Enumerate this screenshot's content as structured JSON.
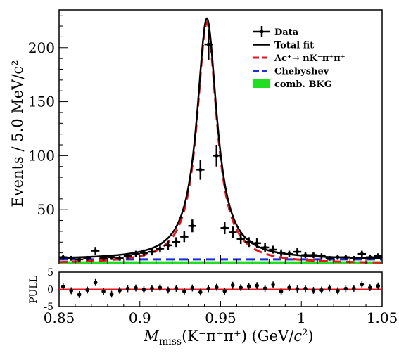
{
  "chart_data": [
    {
      "type": "line",
      "panel": "main",
      "ylabel": "Events / 5.0 MeV/c²",
      "xlabel": "M_miss(K⁻π⁺π⁺) (GeV/c²)",
      "xlim": [
        0.85,
        1.05
      ],
      "ylim": [
        0,
        235
      ],
      "x_ticks": [
        0.85,
        0.9,
        0.95,
        1.0,
        1.05
      ],
      "x_tick_labels": [
        "0.85",
        "0.9",
        "0.95",
        "1",
        "1.05"
      ],
      "y_ticks": [
        50,
        100,
        150,
        200
      ],
      "y_tick_labels": [
        "50",
        "100",
        "150",
        "200"
      ],
      "legend_position": "top-right",
      "legend": [
        {
          "label": "Data",
          "style": "marker",
          "color": "#000000"
        },
        {
          "label": "Total fit",
          "style": "solid",
          "color": "#000000"
        },
        {
          "label": "Λc⁺→ nK⁻π⁺π⁺",
          "style": "dashed",
          "color": "#e8141c"
        },
        {
          "label": "Chebyshev",
          "style": "dashed",
          "color": "#1a2fe0"
        },
        {
          "label": "comb. BKG",
          "style": "fill",
          "color": "#22dd22"
        }
      ],
      "data": {
        "name": "Data",
        "x": [
          0.8525,
          0.8575,
          0.8625,
          0.8675,
          0.8725,
          0.8775,
          0.8825,
          0.8875,
          0.8925,
          0.8975,
          0.9025,
          0.9075,
          0.9125,
          0.9175,
          0.9225,
          0.9275,
          0.9325,
          0.9375,
          0.9425,
          0.9475,
          0.9525,
          0.9575,
          0.9625,
          0.9675,
          0.9725,
          0.9775,
          0.9825,
          0.9875,
          0.9925,
          0.9975,
          1.0025,
          1.0075,
          1.0125,
          1.0175,
          1.0225,
          1.0275,
          1.0325,
          1.0375,
          1.0425,
          1.0475
        ],
        "y": [
          6,
          5,
          4,
          5,
          12,
          5,
          6,
          5,
          7,
          9,
          10,
          11,
          14,
          17,
          20,
          25,
          35,
          87,
          203,
          100,
          33,
          29,
          23,
          20,
          19,
          15,
          13,
          10,
          9,
          11,
          8,
          8,
          7,
          5,
          6,
          6,
          5,
          9,
          6,
          7
        ],
        "yerr": [
          2.5,
          2.2,
          2,
          2.2,
          3.5,
          2.2,
          2.5,
          2.2,
          2.6,
          3,
          3.2,
          3.3,
          3.7,
          4.1,
          4.5,
          5,
          5.9,
          9.3,
          14.2,
          10,
          5.7,
          5.4,
          4.8,
          4.5,
          4.4,
          3.9,
          3.6,
          3.2,
          3,
          3.3,
          2.8,
          2.8,
          2.6,
          2.2,
          2.5,
          2.5,
          2.2,
          3,
          2.5,
          2.6
        ]
      },
      "fit_params": {
        "peak_x": 0.9415,
        "peak_height": 223,
        "gamma": 0.0075,
        "chebyshev_level": 4,
        "comb_bkg_level": 2.2
      }
    },
    {
      "type": "scatter",
      "panel": "pull",
      "ylabel": "PULL",
      "xlim": [
        0.85,
        1.05
      ],
      "ylim": [
        -5,
        5
      ],
      "y_ticks": [
        -5,
        0,
        5
      ],
      "y_tick_labels": [
        "-5",
        "0",
        "5"
      ],
      "x": [
        0.8525,
        0.8575,
        0.8625,
        0.8675,
        0.8725,
        0.8775,
        0.8825,
        0.8875,
        0.8925,
        0.8975,
        0.9025,
        0.9075,
        0.9125,
        0.9175,
        0.9225,
        0.9275,
        0.9325,
        0.9375,
        0.9425,
        0.9475,
        0.9525,
        0.9575,
        0.9625,
        0.9675,
        0.9725,
        0.9775,
        0.9825,
        0.9875,
        0.9925,
        0.9975,
        1.0025,
        1.0075,
        1.0125,
        1.0175,
        1.0225,
        1.0275,
        1.0325,
        1.0375,
        1.0425,
        1.0475
      ],
      "values": [
        0.8,
        -0.4,
        -1.5,
        -0.2,
        2.0,
        -0.6,
        -1.4,
        -0.3,
        0.2,
        0.4,
        -0.1,
        0.3,
        0.5,
        -0.2,
        0.3,
        -0.6,
        0.4,
        -0.8,
        0.2,
        0.6,
        -0.5,
        1.2,
        0.5,
        0.9,
        1.1,
        0.3,
        1.3,
        -0.6,
        0.5,
        0.1,
        0.2,
        -0.3,
        -0.2,
        0.4,
        -0.4,
        0.2,
        0.3,
        1.4,
        0.5,
        1.0
      ]
    }
  ],
  "colors": {
    "total_fit": "#000000",
    "signal": "#e8141c",
    "chebyshev": "#1a2fe0",
    "comb_bkg": "#22dd22",
    "pull_zero_line": "#e8141c"
  }
}
